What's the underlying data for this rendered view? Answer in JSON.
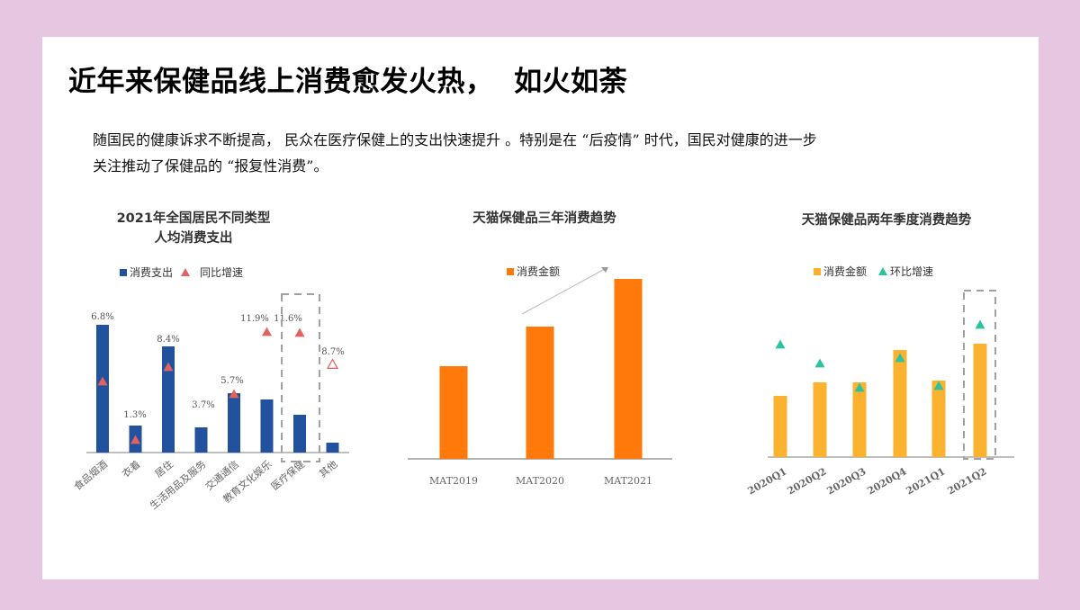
{
  "page": {
    "title": "近年来保健品线上消费愈发火热，  如火如荼",
    "intro_line1": "随国民的健康诉求不断提高， 民众在医疗保健上的支出快速提升 。特别是在 “后疫情” 时代，国民对健康的进一步",
    "intro_line2": "关注推动了保健品的  “报复性消费”。"
  },
  "colors": {
    "background": "#E7C6E1",
    "chart1_bar": "#22519E",
    "chart1_marker": "#E2625F",
    "chart2_bar": "#FF7A0A",
    "chart3_bar": "#FBB22F",
    "chart3_marker": "#2BC4A0",
    "highlight_box": "#A0A0A0"
  },
  "charts": {
    "c1": {
      "title_line1": "2021年全国居民不同类型",
      "title_line2": "人均消费支出",
      "legend_bar": "消费支出",
      "legend_marker": "同比增速"
    },
    "c2": {
      "title": "天猫保健品三年消费趋势",
      "legend_bar": "消费金额"
    },
    "c3": {
      "title": "天猫保健品两年季度消费趋势",
      "legend_bar": "消费金额",
      "legend_marker": "环比增速"
    }
  },
  "chart_data": [
    {
      "type": "bar",
      "title": "2021年全国居民不同类型人均消费支出",
      "categories": [
        "食品烟酒",
        "衣着",
        "居住",
        "生活用品及服务",
        "交通通信",
        "教育文化娱乐",
        "医疗保健",
        "其他"
      ],
      "series": [
        {
          "name": "消费支出",
          "kind": "bar",
          "values": [
            142,
            30,
            118,
            28,
            66,
            59,
            42,
            11
          ],
          "unit": "relative height (no y-axis shown)"
        },
        {
          "name": "同比增速",
          "kind": "marker-triangle",
          "values_pct": [
            6.8,
            1.3,
            8.4,
            3.7,
            5.7,
            11.9,
            11.6,
            8.7
          ],
          "labels": [
            "6.8%",
            "1.3%",
            "8.4%",
            "3.7%",
            "5.7%",
            "11.9%",
            "11.6%",
            "8.7%"
          ]
        }
      ],
      "highlight": "医疗保健 (dashed box)",
      "xlabel": "",
      "ylabel": "",
      "legend_position": "top",
      "grid": false
    },
    {
      "type": "bar",
      "title": "天猫保健品三年消费趋势",
      "categories": [
        "MAT2019",
        "MAT2020",
        "MAT2021"
      ],
      "series": [
        {
          "name": "消费金额",
          "values": [
            103,
            147,
            200
          ],
          "unit": "relative height (no y-axis shown)"
        }
      ],
      "annotation": "upward trend arrow",
      "xlabel": "",
      "ylabel": "",
      "legend_position": "top",
      "grid": false
    },
    {
      "type": "bar",
      "title": "天猫保健品两年季度消费趋势",
      "categories": [
        "2020Q1",
        "2020Q2",
        "2020Q3",
        "2020Q4",
        "2021Q1",
        "2021Q2"
      ],
      "series": [
        {
          "name": "消费金额",
          "kind": "bar",
          "values": [
            68,
            83,
            83,
            119,
            85,
            126
          ],
          "unit": "relative height (no y-axis shown)"
        },
        {
          "name": "环比增速",
          "kind": "marker-triangle",
          "values": [
            125,
            104,
            77,
            110,
            79,
            147
          ],
          "unit": "relative height (no labels shown)"
        }
      ],
      "highlight": "2021Q2 (dashed box)",
      "xlabel": "",
      "ylabel": "",
      "legend_position": "top",
      "grid": false
    }
  ]
}
